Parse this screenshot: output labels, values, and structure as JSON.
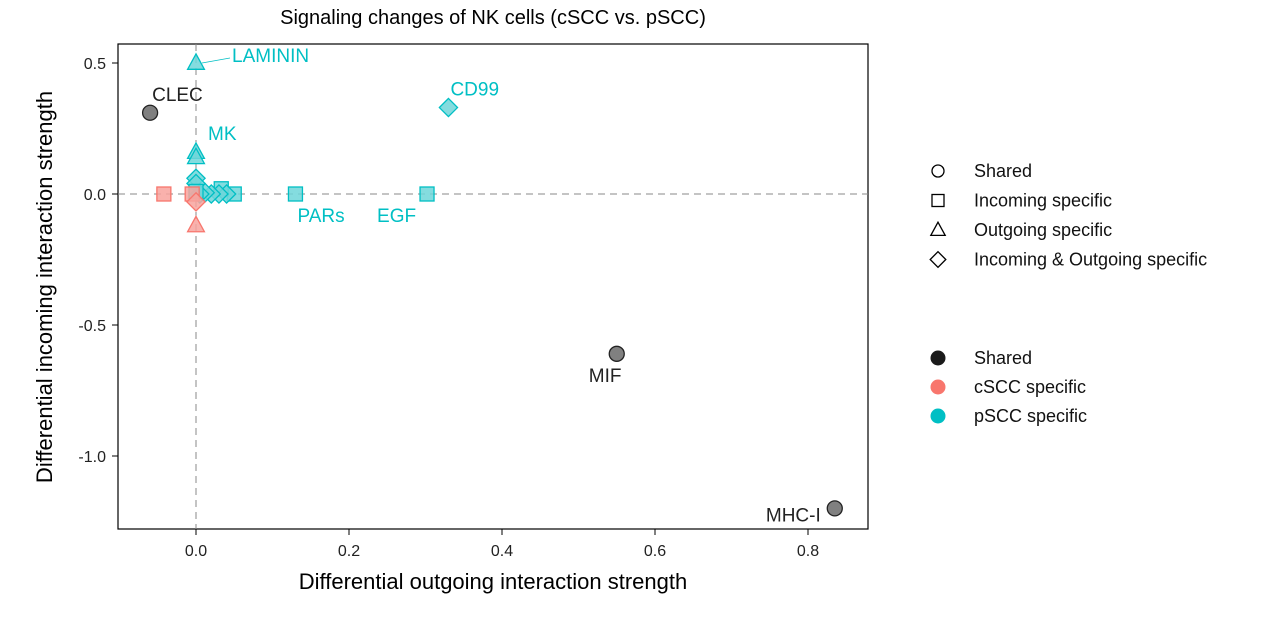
{
  "chart_data": {
    "type": "scatter",
    "title": "Signaling changes of NK cells (cSCC vs. pSCC)",
    "xlabel": "Differential outgoing interaction strength",
    "ylabel": "Differential incoming interaction strength",
    "xlim": [
      -0.1,
      0.88
    ],
    "ylim": [
      -1.29,
      0.57
    ],
    "xticks": [
      "0.0",
      "0.2",
      "0.4",
      "0.6",
      "0.8"
    ],
    "xtick_values": [
      0,
      0.2,
      0.4,
      0.6,
      0.8
    ],
    "yticks": [
      "0.5",
      "0.0",
      "-0.5",
      "-1.0"
    ],
    "ytick_values": [
      0.5,
      0,
      -0.5,
      -1.0
    ],
    "grid": false,
    "reference_lines": {
      "x": 0,
      "y": 0,
      "style": "dashed"
    },
    "legend_placement": "right",
    "shape_legend": [
      {
        "label": "Shared",
        "shape": "circle"
      },
      {
        "label": "Incoming specific",
        "shape": "square"
      },
      {
        "label": "Outgoing specific",
        "shape": "triangle"
      },
      {
        "label": "Incoming & Outgoing specific",
        "shape": "diamond"
      }
    ],
    "color_legend": [
      {
        "label": "Shared",
        "color": "#1a1a1a"
      },
      {
        "label": "cSCC specific",
        "color": "#F8766D"
      },
      {
        "label": "pSCC specific",
        "color": "#00BFC4"
      }
    ],
    "points": [
      {
        "x": -0.06,
        "y": 0.31,
        "shape": "circle",
        "group": "Shared",
        "label": "CLEC"
      },
      {
        "x": 0.55,
        "y": -0.61,
        "shape": "circle",
        "group": "Shared",
        "label": "MIF"
      },
      {
        "x": 0.835,
        "y": -1.2,
        "shape": "circle",
        "group": "Shared",
        "label": "MHC-I"
      },
      {
        "x": 0.0,
        "y": 0.5,
        "shape": "triangle",
        "group": "pSCC specific",
        "label": "LAMININ"
      },
      {
        "x": 0.33,
        "y": 0.33,
        "shape": "diamond",
        "group": "pSCC specific",
        "label": "CD99"
      },
      {
        "x": 0.0,
        "y": 0.16,
        "shape": "triangle",
        "group": "pSCC specific",
        "label": "MK"
      },
      {
        "x": 0.0,
        "y": 0.14,
        "shape": "triangle",
        "group": "pSCC specific",
        "label": ""
      },
      {
        "x": 0.0,
        "y": 0.06,
        "shape": "diamond",
        "group": "pSCC specific",
        "label": ""
      },
      {
        "x": 0.0,
        "y": 0.04,
        "shape": "diamond",
        "group": "pSCC specific",
        "label": ""
      },
      {
        "x": 0.13,
        "y": 0.0,
        "shape": "square",
        "group": "pSCC specific",
        "label": "PARs"
      },
      {
        "x": 0.302,
        "y": 0.0,
        "shape": "square",
        "group": "pSCC specific",
        "label": "EGF"
      },
      {
        "x": 0.05,
        "y": 0.0,
        "shape": "square",
        "group": "pSCC specific",
        "label": ""
      },
      {
        "x": 0.033,
        "y": 0.02,
        "shape": "square",
        "group": "pSCC specific",
        "label": ""
      },
      {
        "x": 0.04,
        "y": 0.0,
        "shape": "diamond",
        "group": "pSCC specific",
        "label": ""
      },
      {
        "x": 0.03,
        "y": 0.0,
        "shape": "diamond",
        "group": "pSCC specific",
        "label": ""
      },
      {
        "x": 0.02,
        "y": 0.0,
        "shape": "diamond",
        "group": "pSCC specific",
        "label": ""
      },
      {
        "x": 0.012,
        "y": 0.005,
        "shape": "diamond",
        "group": "pSCC specific",
        "label": ""
      },
      {
        "x": 0.005,
        "y": 0.0,
        "shape": "diamond",
        "group": "pSCC specific",
        "label": ""
      },
      {
        "x": 0.0,
        "y": 0.01,
        "shape": "square",
        "group": "pSCC specific",
        "label": ""
      },
      {
        "x": -0.042,
        "y": 0.0,
        "shape": "square",
        "group": "cSCC specific",
        "label": ""
      },
      {
        "x": -0.005,
        "y": 0.0,
        "shape": "square",
        "group": "cSCC specific",
        "label": ""
      },
      {
        "x": 0.0,
        "y": -0.03,
        "shape": "diamond",
        "group": "cSCC specific",
        "label": ""
      },
      {
        "x": 0.0,
        "y": -0.12,
        "shape": "triangle",
        "group": "cSCC specific",
        "label": ""
      }
    ]
  }
}
